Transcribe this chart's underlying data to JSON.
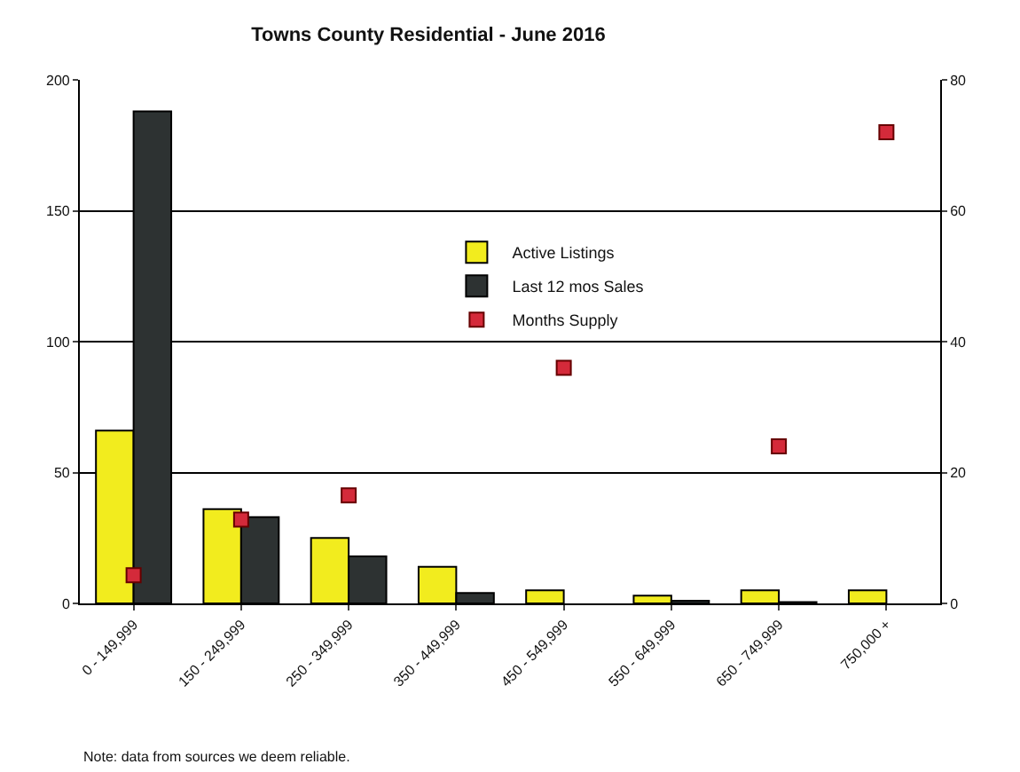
{
  "chart_data": {
    "type": "bar",
    "title": "Towns County Residential - June 2016",
    "categories": [
      "0 - 149,999",
      "150 - 249,999",
      "250 - 349,999",
      "350 - 449,999",
      "450 - 549,999",
      "550 - 649,999",
      "650 - 749,999",
      "750,000 +"
    ],
    "series": [
      {
        "name": "Active Listings",
        "color": "#f2ec1e",
        "values": [
          66,
          36,
          25,
          14,
          5,
          3,
          5,
          5
        ]
      },
      {
        "name": "Last 12 mos Sales",
        "color": "#2d3232",
        "values": [
          188,
          33,
          18,
          4,
          0,
          1,
          0.5,
          0
        ]
      },
      {
        "name": "Months Supply",
        "type": "scatter",
        "axis": "y2",
        "color": "#d42a3a",
        "values": [
          4.3,
          12.8,
          16.5,
          null,
          36,
          null,
          24,
          72
        ]
      }
    ],
    "ylim": [
      0,
      200
    ],
    "yticks": [
      0,
      50,
      100,
      150,
      200
    ],
    "y2lim": [
      0,
      80
    ],
    "y2ticks": [
      0,
      20,
      40,
      60,
      80
    ],
    "grid": "y",
    "legend": "center",
    "marker": "square",
    "annotations": [
      "Note: data from sources we deem reliable."
    ]
  }
}
